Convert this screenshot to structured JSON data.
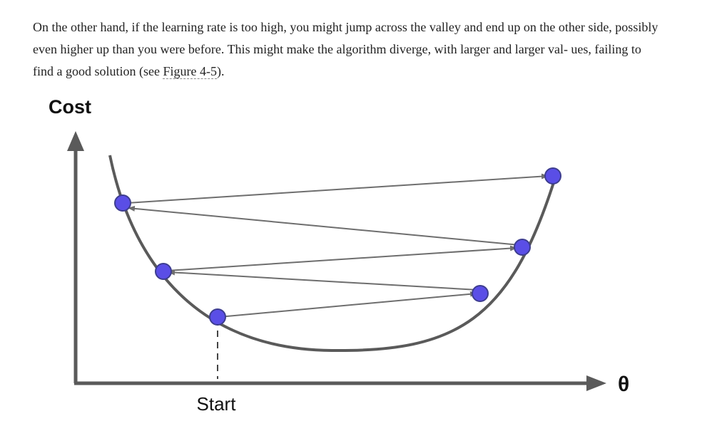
{
  "paragraph": {
    "text_before": "On the other hand, if the learning rate is too high, you might jump across the valley and end up on the other side, possibly even higher up than you were before. This might make the algorithm diverge, with larger and larger val- ues, failing to find a good solution (see ",
    "link_text": "Figure 4-5",
    "text_after": ")."
  },
  "figure": {
    "y_axis_label": "Cost",
    "x_axis_label": "θ",
    "start_label": "Start",
    "colors": {
      "curve": "#5a5a5a",
      "axis": "#5a5a5a",
      "arrow": "#6e6e6e",
      "point_fill": "#5a4ee6",
      "point_stroke": "#3d3d8f",
      "text": "#222222"
    }
  }
}
